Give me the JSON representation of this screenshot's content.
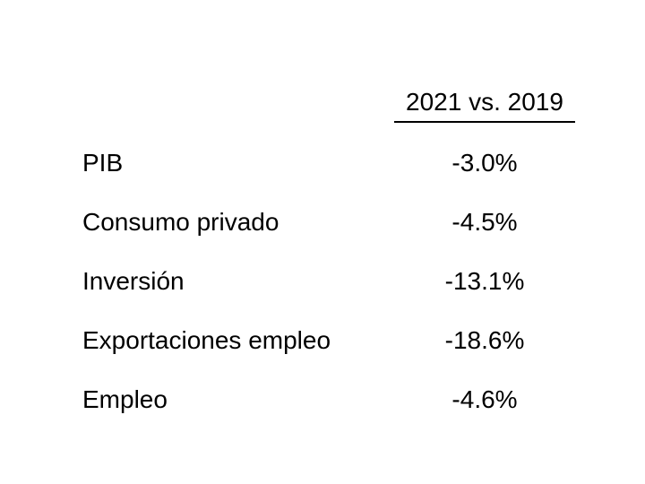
{
  "table": {
    "column_header": "2021 vs. 2019",
    "rows": [
      {
        "label": "PIB",
        "value": "-3.0%"
      },
      {
        "label": "Consumo privado",
        "value": "-4.5%"
      },
      {
        "label": "Inversión",
        "value": "-13.1%"
      },
      {
        "label": "Exportaciones empleo",
        "value": "-18.6%"
      },
      {
        "label": "Empleo",
        "value": "-4.6%"
      }
    ]
  }
}
